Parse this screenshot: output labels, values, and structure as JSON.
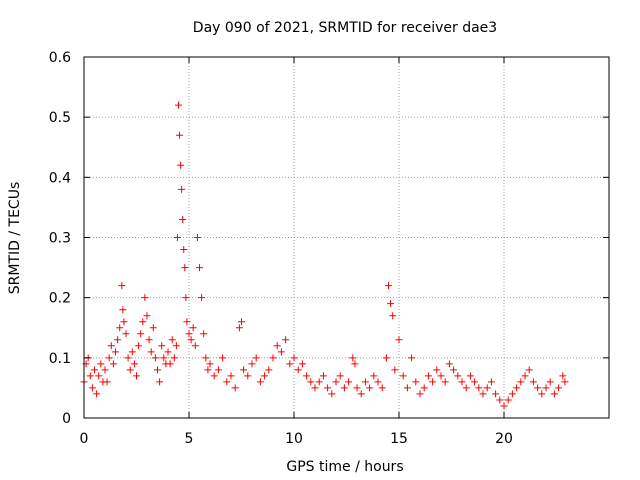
{
  "chart_data": {
    "type": "scatter",
    "title": "Day 090 of 2021, SRMTID for receiver dae3",
    "xlabel": "GPS time / hours",
    "ylabel": "SRMTID / TECUs",
    "xlim": [
      0,
      25
    ],
    "ylim": [
      0,
      0.6
    ],
    "x_ticks": [
      0,
      5,
      10,
      15,
      20
    ],
    "y_ticks": [
      0,
      0.1,
      0.2,
      0.3,
      0.4,
      0.5,
      0.6
    ],
    "x_tick_labels": [
      "0",
      "5",
      "10",
      "15",
      "20"
    ],
    "y_tick_labels": [
      "0",
      "0.1",
      "0.2",
      "0.3",
      "0.4",
      "0.5",
      "0.6"
    ],
    "grid": true,
    "marker": "plus",
    "color": "#ff0000",
    "series": [
      {
        "name": "SRMTID",
        "points": [
          [
            0.0,
            0.06
          ],
          [
            0.1,
            0.09
          ],
          [
            0.2,
            0.1
          ],
          [
            0.3,
            0.07
          ],
          [
            0.4,
            0.05
          ],
          [
            0.5,
            0.08
          ],
          [
            0.6,
            0.04
          ],
          [
            0.7,
            0.07
          ],
          [
            0.8,
            0.09
          ],
          [
            0.9,
            0.06
          ],
          [
            1.0,
            0.08
          ],
          [
            1.1,
            0.06
          ],
          [
            1.2,
            0.1
          ],
          [
            1.3,
            0.12
          ],
          [
            1.4,
            0.09
          ],
          [
            1.5,
            0.11
          ],
          [
            1.6,
            0.13
          ],
          [
            1.7,
            0.15
          ],
          [
            1.8,
            0.22
          ],
          [
            1.85,
            0.18
          ],
          [
            1.9,
            0.16
          ],
          [
            2.0,
            0.14
          ],
          [
            2.1,
            0.1
          ],
          [
            2.2,
            0.08
          ],
          [
            2.3,
            0.11
          ],
          [
            2.4,
            0.09
          ],
          [
            2.5,
            0.07
          ],
          [
            2.6,
            0.12
          ],
          [
            2.7,
            0.14
          ],
          [
            2.8,
            0.16
          ],
          [
            2.9,
            0.2
          ],
          [
            3.0,
            0.17
          ],
          [
            3.1,
            0.13
          ],
          [
            3.2,
            0.11
          ],
          [
            3.3,
            0.15
          ],
          [
            3.4,
            0.1
          ],
          [
            3.5,
            0.08
          ],
          [
            3.6,
            0.06
          ],
          [
            3.7,
            0.12
          ],
          [
            3.8,
            0.1
          ],
          [
            3.9,
            0.09
          ],
          [
            4.0,
            0.11
          ],
          [
            4.1,
            0.09
          ],
          [
            4.2,
            0.13
          ],
          [
            4.3,
            0.1
          ],
          [
            4.4,
            0.12
          ],
          [
            4.45,
            0.3
          ],
          [
            4.5,
            0.52
          ],
          [
            4.55,
            0.47
          ],
          [
            4.6,
            0.42
          ],
          [
            4.65,
            0.38
          ],
          [
            4.7,
            0.33
          ],
          [
            4.75,
            0.28
          ],
          [
            4.8,
            0.25
          ],
          [
            4.85,
            0.2
          ],
          [
            4.9,
            0.16
          ],
          [
            5.0,
            0.14
          ],
          [
            5.1,
            0.13
          ],
          [
            5.2,
            0.15
          ],
          [
            5.3,
            0.12
          ],
          [
            5.4,
            0.3
          ],
          [
            5.5,
            0.25
          ],
          [
            5.6,
            0.2
          ],
          [
            5.7,
            0.14
          ],
          [
            5.8,
            0.1
          ],
          [
            5.9,
            0.08
          ],
          [
            6.0,
            0.09
          ],
          [
            6.2,
            0.07
          ],
          [
            6.4,
            0.08
          ],
          [
            6.6,
            0.1
          ],
          [
            6.8,
            0.06
          ],
          [
            7.0,
            0.07
          ],
          [
            7.2,
            0.05
          ],
          [
            7.4,
            0.15
          ],
          [
            7.5,
            0.16
          ],
          [
            7.6,
            0.08
          ],
          [
            7.8,
            0.07
          ],
          [
            8.0,
            0.09
          ],
          [
            8.2,
            0.1
          ],
          [
            8.4,
            0.06
          ],
          [
            8.6,
            0.07
          ],
          [
            8.8,
            0.08
          ],
          [
            9.0,
            0.1
          ],
          [
            9.2,
            0.12
          ],
          [
            9.4,
            0.11
          ],
          [
            9.6,
            0.13
          ],
          [
            9.8,
            0.09
          ],
          [
            10.0,
            0.1
          ],
          [
            10.2,
            0.08
          ],
          [
            10.4,
            0.09
          ],
          [
            10.6,
            0.07
          ],
          [
            10.8,
            0.06
          ],
          [
            11.0,
            0.05
          ],
          [
            11.2,
            0.06
          ],
          [
            11.4,
            0.07
          ],
          [
            11.6,
            0.05
          ],
          [
            11.8,
            0.04
          ],
          [
            12.0,
            0.06
          ],
          [
            12.2,
            0.07
          ],
          [
            12.4,
            0.05
          ],
          [
            12.6,
            0.06
          ],
          [
            12.8,
            0.1
          ],
          [
            12.9,
            0.09
          ],
          [
            13.0,
            0.05
          ],
          [
            13.2,
            0.04
          ],
          [
            13.4,
            0.06
          ],
          [
            13.6,
            0.05
          ],
          [
            13.8,
            0.07
          ],
          [
            14.0,
            0.06
          ],
          [
            14.2,
            0.05
          ],
          [
            14.4,
            0.1
          ],
          [
            14.5,
            0.22
          ],
          [
            14.6,
            0.19
          ],
          [
            14.7,
            0.17
          ],
          [
            14.8,
            0.08
          ],
          [
            15.0,
            0.13
          ],
          [
            15.2,
            0.07
          ],
          [
            15.4,
            0.05
          ],
          [
            15.6,
            0.1
          ],
          [
            15.8,
            0.06
          ],
          [
            16.0,
            0.04
          ],
          [
            16.2,
            0.05
          ],
          [
            16.4,
            0.07
          ],
          [
            16.6,
            0.06
          ],
          [
            16.8,
            0.08
          ],
          [
            17.0,
            0.07
          ],
          [
            17.2,
            0.06
          ],
          [
            17.4,
            0.09
          ],
          [
            17.6,
            0.08
          ],
          [
            17.8,
            0.07
          ],
          [
            18.0,
            0.06
          ],
          [
            18.2,
            0.05
          ],
          [
            18.4,
            0.07
          ],
          [
            18.6,
            0.06
          ],
          [
            18.8,
            0.05
          ],
          [
            19.0,
            0.04
          ],
          [
            19.2,
            0.05
          ],
          [
            19.4,
            0.06
          ],
          [
            19.6,
            0.04
          ],
          [
            19.8,
            0.03
          ],
          [
            20.0,
            0.02
          ],
          [
            20.2,
            0.03
          ],
          [
            20.4,
            0.04
          ],
          [
            20.6,
            0.05
          ],
          [
            20.8,
            0.06
          ],
          [
            21.0,
            0.07
          ],
          [
            21.2,
            0.08
          ],
          [
            21.4,
            0.06
          ],
          [
            21.6,
            0.05
          ],
          [
            21.8,
            0.04
          ],
          [
            22.0,
            0.05
          ],
          [
            22.2,
            0.06
          ],
          [
            22.4,
            0.04
          ],
          [
            22.6,
            0.05
          ],
          [
            22.8,
            0.07
          ],
          [
            22.9,
            0.06
          ]
        ]
      }
    ]
  }
}
